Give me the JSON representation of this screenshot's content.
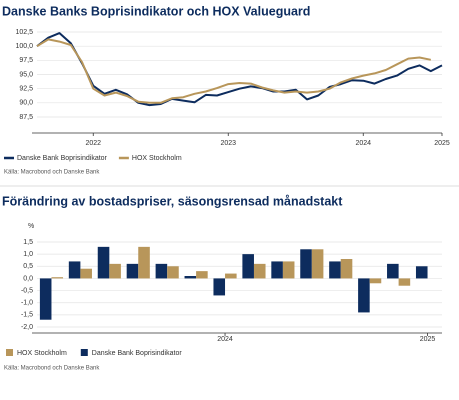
{
  "chart_data": [
    {
      "type": "line",
      "title": "Danske Banks Boprisindikator och HOX Valueguard",
      "source": "Källa: Macrobond och Danske Bank",
      "categories": [
        null,
        null,
        null,
        null,
        null,
        "2022",
        null,
        null,
        null,
        null,
        null,
        null,
        null,
        null,
        null,
        null,
        null,
        "2023",
        null,
        null,
        null,
        null,
        null,
        null,
        null,
        null,
        null,
        null,
        null,
        "2024",
        null,
        null,
        null,
        null,
        null,
        null,
        "2025"
      ],
      "series": [
        {
          "name": "Danske Bank Boprisindikator",
          "color": "#0d2c5e",
          "values": [
            100.0,
            101.5,
            102.3,
            100.5,
            97.0,
            93.0,
            91.6,
            92.3,
            91.5,
            90.0,
            89.6,
            89.8,
            90.7,
            90.4,
            90.1,
            91.4,
            91.3,
            91.9,
            92.5,
            92.9,
            92.6,
            92.0,
            92.0,
            92.3,
            90.6,
            91.3,
            92.8,
            93.3,
            94.0,
            93.9,
            93.4,
            94.2,
            94.8,
            96.0,
            96.6,
            95.6,
            96.6
          ]
        },
        {
          "name": "HOX Stockholm",
          "color": "#b8965a",
          "values": [
            100.0,
            101.2,
            100.8,
            100.2,
            97.2,
            92.5,
            91.3,
            91.8,
            91.2,
            90.2,
            90.0,
            90.0,
            90.8,
            91.0,
            91.6,
            92.0,
            92.6,
            93.3,
            93.5,
            93.4,
            92.7,
            92.2,
            91.8,
            92.0,
            91.8,
            92.0,
            92.5,
            93.6,
            94.3,
            94.8,
            95.2,
            95.8,
            96.8,
            97.8,
            98.0,
            97.6,
            null
          ]
        }
      ],
      "ylim": [
        87.5,
        102.5
      ],
      "yticks": [
        {
          "value": 87.5,
          "label": "87,5"
        },
        {
          "value": 90,
          "label": "90,0"
        },
        {
          "value": 92.5,
          "label": "92,5"
        },
        {
          "value": 95,
          "label": "95,0"
        },
        {
          "value": 97.5,
          "label": "97,5"
        },
        {
          "value": 100,
          "label": "100,0"
        },
        {
          "value": 102.5,
          "label": "102,5"
        }
      ],
      "grid": true
    },
    {
      "type": "bar",
      "title": "Förändring av bostadspriser, säsongsrensad månadstakt",
      "y_label": "%",
      "source": "Källa: Macrobond och Danske Bank",
      "categories": [
        null,
        null,
        null,
        null,
        null,
        null,
        "2024",
        null,
        null,
        null,
        null,
        null,
        null,
        "2025"
      ],
      "series": [
        {
          "name": "Danske Bank Boprisindikator",
          "color": "#0d2c5e",
          "values": [
            -1.7,
            0.7,
            1.3,
            0.6,
            0.6,
            0.1,
            -0.7,
            1.0,
            0.7,
            1.2,
            0.7,
            -1.4,
            0.6,
            0.5
          ]
        },
        {
          "name": "HOX Stockholm",
          "color": "#b8965a",
          "values": [
            0.05,
            0.4,
            0.6,
            1.3,
            0.5,
            0.3,
            0.2,
            0.6,
            0.7,
            1.2,
            0.8,
            -0.2,
            -0.3,
            null
          ]
        }
      ],
      "ylim": [
        -2.0,
        1.5
      ],
      "yticks": [
        {
          "value": -2,
          "label": "-2,0"
        },
        {
          "value": -1.5,
          "label": "-1,5"
        },
        {
          "value": -1,
          "label": "-1,0"
        },
        {
          "value": -0.5,
          "label": "-0,5"
        },
        {
          "value": 0,
          "label": "0,0"
        },
        {
          "value": 0.5,
          "label": "0,5"
        },
        {
          "value": 1,
          "label": "1,0"
        },
        {
          "value": 1.5,
          "label": "1,5"
        }
      ],
      "grid": true
    }
  ]
}
